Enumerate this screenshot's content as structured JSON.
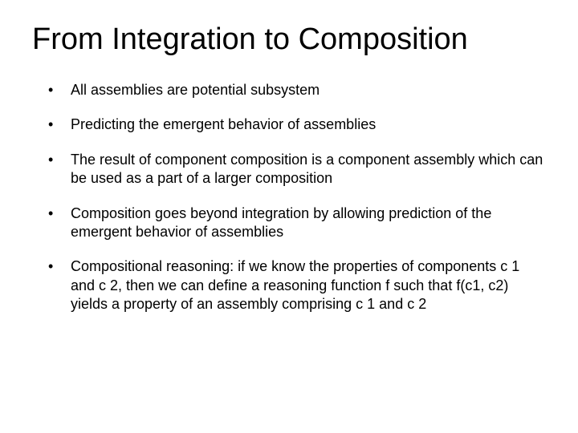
{
  "slide": {
    "title": "From Integration to Composition",
    "title_fontsize": 38,
    "title_color": "#000000",
    "body_fontsize": 18,
    "body_color": "#000000",
    "background_color": "#ffffff",
    "bullets": [
      "All assemblies are potential subsystem",
      "Predicting the emergent behavior of assemblies",
      "The result of component composition is a component assembly which can be used as a part of a larger composition",
      "Composition goes beyond integration by allowing prediction of the emergent behavior of assemblies",
      "Compositional reasoning: if we know the properties of components c 1 and c 2, then we can define a reasoning function f such that f(c1, c2)  yields a property of an assembly comprising c 1 and c 2"
    ]
  }
}
